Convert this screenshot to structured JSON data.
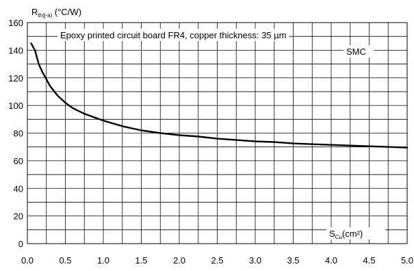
{
  "chart_data": {
    "type": "line",
    "title": "",
    "ylabel": {
      "main": "R",
      "sub": "th(j-a)",
      "unit": " (°C/W)"
    },
    "xlabel": {
      "main": "S",
      "sub": "Cu",
      "unit": "(cm²)"
    },
    "annotations": {
      "condition": "Epoxy printed circuit board FR4, copper thickness: 35 µm",
      "package": "SMC"
    },
    "xlim": [
      0,
      5
    ],
    "ylim": [
      0,
      160
    ],
    "x_ticks": [
      "0.0",
      "0.5",
      "1.0",
      "1.5",
      "2.0",
      "2.5",
      "3.0",
      "3.5",
      "4.0",
      "4.5",
      "5.0"
    ],
    "y_ticks": [
      "0",
      "20",
      "40",
      "60",
      "80",
      "100",
      "120",
      "140",
      "160"
    ],
    "grid": true,
    "series": [
      {
        "x": [
          0.05,
          0.1,
          0.15,
          0.2,
          0.3,
          0.4,
          0.5,
          0.6,
          0.75,
          0.9,
          1.0,
          1.25,
          1.5,
          1.75,
          2.0,
          2.25,
          2.5,
          2.75,
          3.0,
          3.25,
          3.5,
          3.75,
          4.0,
          4.25,
          4.5,
          4.75,
          5.0
        ],
        "y": [
          145,
          140,
          130,
          124,
          114,
          107,
          102,
          98,
          94,
          91,
          89,
          85,
          82,
          80,
          78.5,
          77.5,
          76,
          75,
          74,
          73.5,
          72.5,
          72,
          71.5,
          71,
          70.5,
          70,
          69.5
        ]
      }
    ]
  }
}
